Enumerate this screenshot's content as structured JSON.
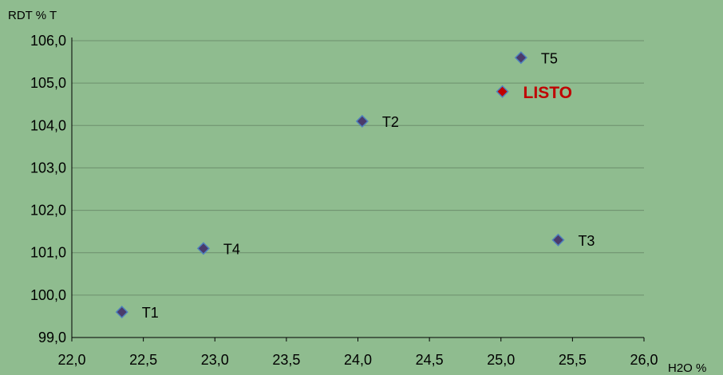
{
  "chart_data": {
    "type": "scatter",
    "ylabel": "RDT % T",
    "xlabel": "H2O %",
    "xlim": [
      22.0,
      26.0
    ],
    "ylim": [
      99.0,
      106.0
    ],
    "xticks": [
      "22,0",
      "22,5",
      "23,0",
      "23,5",
      "24,0",
      "24,5",
      "25,0",
      "25,5",
      "26,0"
    ],
    "yticks": [
      "99,0",
      "100,0",
      "101,0",
      "102,0",
      "103,0",
      "104,0",
      "105,0",
      "106,0"
    ],
    "grid": "horizontal",
    "colors": {
      "background": "#8fbc8f",
      "marker": "#4a3b6b",
      "marker_edge": "#4f81bd",
      "highlight": "#c00000",
      "grid": "#6d8f6d"
    },
    "points": [
      {
        "label": "T1",
        "x": 22.35,
        "y": 99.6
      },
      {
        "label": "T4",
        "x": 22.92,
        "y": 101.1
      },
      {
        "label": "T2",
        "x": 24.03,
        "y": 104.1
      },
      {
        "label": "LISTO",
        "x": 25.01,
        "y": 104.8,
        "highlight": true
      },
      {
        "label": "T5",
        "x": 25.14,
        "y": 105.6
      },
      {
        "label": "T3",
        "x": 25.4,
        "y": 101.3
      }
    ]
  }
}
